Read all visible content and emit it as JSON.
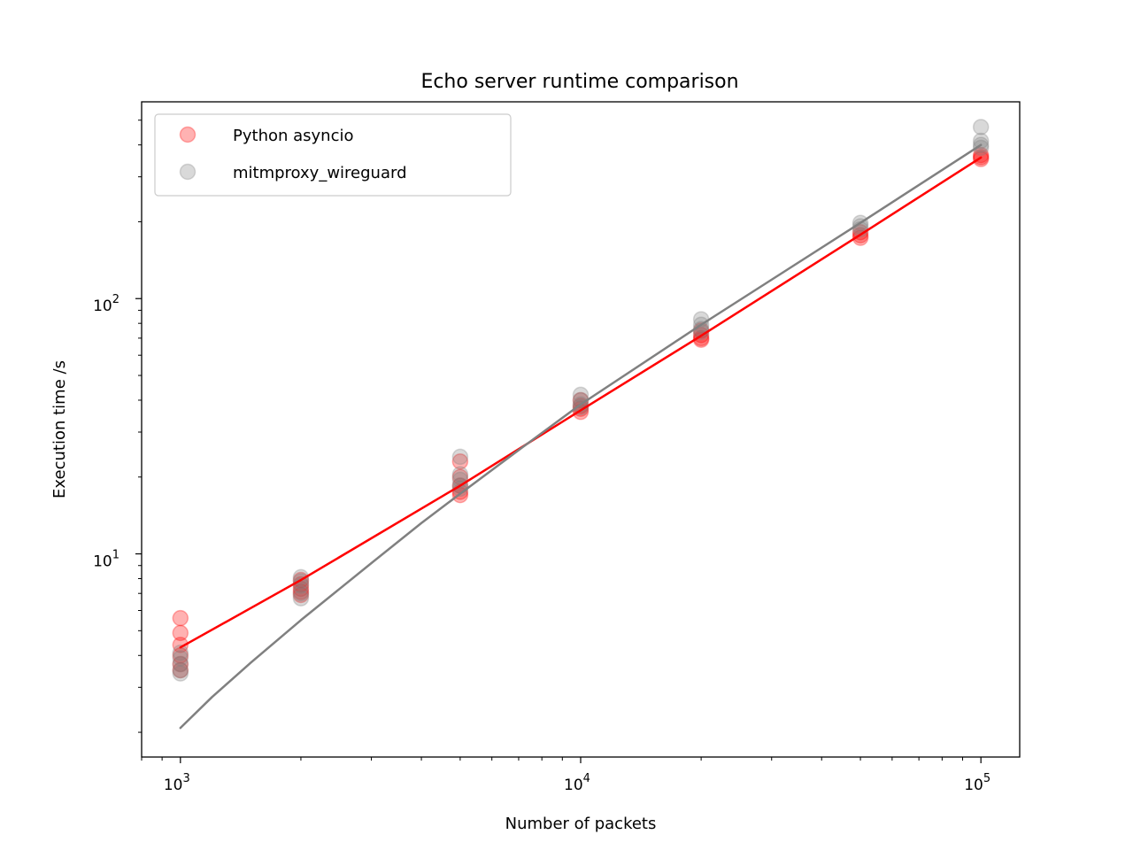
{
  "chart_data": {
    "type": "scatter",
    "title": "Echo server runtime comparison",
    "xlabel": "Number of packets",
    "ylabel": "Execution time /s",
    "xscale": "log",
    "yscale": "log",
    "xlim": [
      800,
      125000
    ],
    "ylim": [
      1.6,
      590
    ],
    "grid": false,
    "legend_position": "top-left",
    "x_ticks": [
      {
        "value": 1000,
        "base": "10",
        "exp": "3"
      },
      {
        "value": 10000,
        "base": "10",
        "exp": "4"
      },
      {
        "value": 100000,
        "base": "10",
        "exp": "5"
      }
    ],
    "y_ticks": [
      {
        "value": 10,
        "base": "10",
        "exp": "1"
      },
      {
        "value": 100,
        "base": "10",
        "exp": "2"
      }
    ],
    "series": [
      {
        "name": "Python asyncio",
        "color": "#ff0000",
        "marker_alpha": 0.3,
        "points": [
          {
            "x": 1000,
            "y": 5.6
          },
          {
            "x": 1000,
            "y": 4.9
          },
          {
            "x": 1000,
            "y": 4.4
          },
          {
            "x": 1000,
            "y": 4.0
          },
          {
            "x": 1000,
            "y": 3.7
          },
          {
            "x": 1000,
            "y": 3.5
          },
          {
            "x": 2000,
            "y": 7.9
          },
          {
            "x": 2000,
            "y": 7.6
          },
          {
            "x": 2000,
            "y": 7.3
          },
          {
            "x": 2000,
            "y": 7.1
          },
          {
            "x": 2000,
            "y": 6.9
          },
          {
            "x": 5000,
            "y": 23.0
          },
          {
            "x": 5000,
            "y": 20.0
          },
          {
            "x": 5000,
            "y": 18.5
          },
          {
            "x": 5000,
            "y": 17.5
          },
          {
            "x": 5000,
            "y": 17.0
          },
          {
            "x": 10000,
            "y": 40.0
          },
          {
            "x": 10000,
            "y": 38.0
          },
          {
            "x": 10000,
            "y": 37.0
          },
          {
            "x": 10000,
            "y": 36.0
          },
          {
            "x": 20000,
            "y": 75.0
          },
          {
            "x": 20000,
            "y": 72.0
          },
          {
            "x": 20000,
            "y": 70.0
          },
          {
            "x": 20000,
            "y": 69.0
          },
          {
            "x": 50000,
            "y": 182.0
          },
          {
            "x": 50000,
            "y": 177.0
          },
          {
            "x": 50000,
            "y": 173.0
          },
          {
            "x": 100000,
            "y": 365.0
          },
          {
            "x": 100000,
            "y": 358.0
          },
          {
            "x": 100000,
            "y": 352.0
          }
        ],
        "fit_line": [
          {
            "x": 1000,
            "y": 4.3
          },
          {
            "x": 2000,
            "y": 7.9
          },
          {
            "x": 5000,
            "y": 18.5
          },
          {
            "x": 10000,
            "y": 36.5
          },
          {
            "x": 20000,
            "y": 71.5
          },
          {
            "x": 50000,
            "y": 178.0
          },
          {
            "x": 100000,
            "y": 357.0
          }
        ]
      },
      {
        "name": "mitmproxy_wireguard",
        "color": "#808080",
        "marker_alpha": 0.3,
        "points": [
          {
            "x": 1000,
            "y": 4.1
          },
          {
            "x": 1000,
            "y": 3.9
          },
          {
            "x": 1000,
            "y": 3.7
          },
          {
            "x": 1000,
            "y": 3.5
          },
          {
            "x": 1000,
            "y": 3.4
          },
          {
            "x": 2000,
            "y": 8.1
          },
          {
            "x": 2000,
            "y": 7.8
          },
          {
            "x": 2000,
            "y": 7.5
          },
          {
            "x": 2000,
            "y": 7.0
          },
          {
            "x": 2000,
            "y": 6.7
          },
          {
            "x": 5000,
            "y": 24.0
          },
          {
            "x": 5000,
            "y": 20.5
          },
          {
            "x": 5000,
            "y": 19.5
          },
          {
            "x": 5000,
            "y": 18.5
          },
          {
            "x": 5000,
            "y": 18.0
          },
          {
            "x": 10000,
            "y": 42.0
          },
          {
            "x": 10000,
            "y": 40.0
          },
          {
            "x": 10000,
            "y": 38.5
          },
          {
            "x": 10000,
            "y": 37.5
          },
          {
            "x": 20000,
            "y": 83.0
          },
          {
            "x": 20000,
            "y": 79.0
          },
          {
            "x": 20000,
            "y": 76.0
          },
          {
            "x": 20000,
            "y": 74.0
          },
          {
            "x": 50000,
            "y": 198.0
          },
          {
            "x": 50000,
            "y": 192.0
          },
          {
            "x": 50000,
            "y": 187.0
          },
          {
            "x": 100000,
            "y": 470.0
          },
          {
            "x": 100000,
            "y": 415.0
          },
          {
            "x": 100000,
            "y": 400.0
          },
          {
            "x": 100000,
            "y": 390.0
          }
        ],
        "fit_line": [
          {
            "x": 1000,
            "y": 2.08
          },
          {
            "x": 1200,
            "y": 2.75
          },
          {
            "x": 1500,
            "y": 3.75
          },
          {
            "x": 2000,
            "y": 5.5
          },
          {
            "x": 3000,
            "y": 9.2
          },
          {
            "x": 4000,
            "y": 13.2
          },
          {
            "x": 5000,
            "y": 17.2
          },
          {
            "x": 7000,
            "y": 25.5
          },
          {
            "x": 10000,
            "y": 38.5
          },
          {
            "x": 20000,
            "y": 79.0
          },
          {
            "x": 50000,
            "y": 198.0
          },
          {
            "x": 100000,
            "y": 400.0
          }
        ]
      }
    ]
  }
}
